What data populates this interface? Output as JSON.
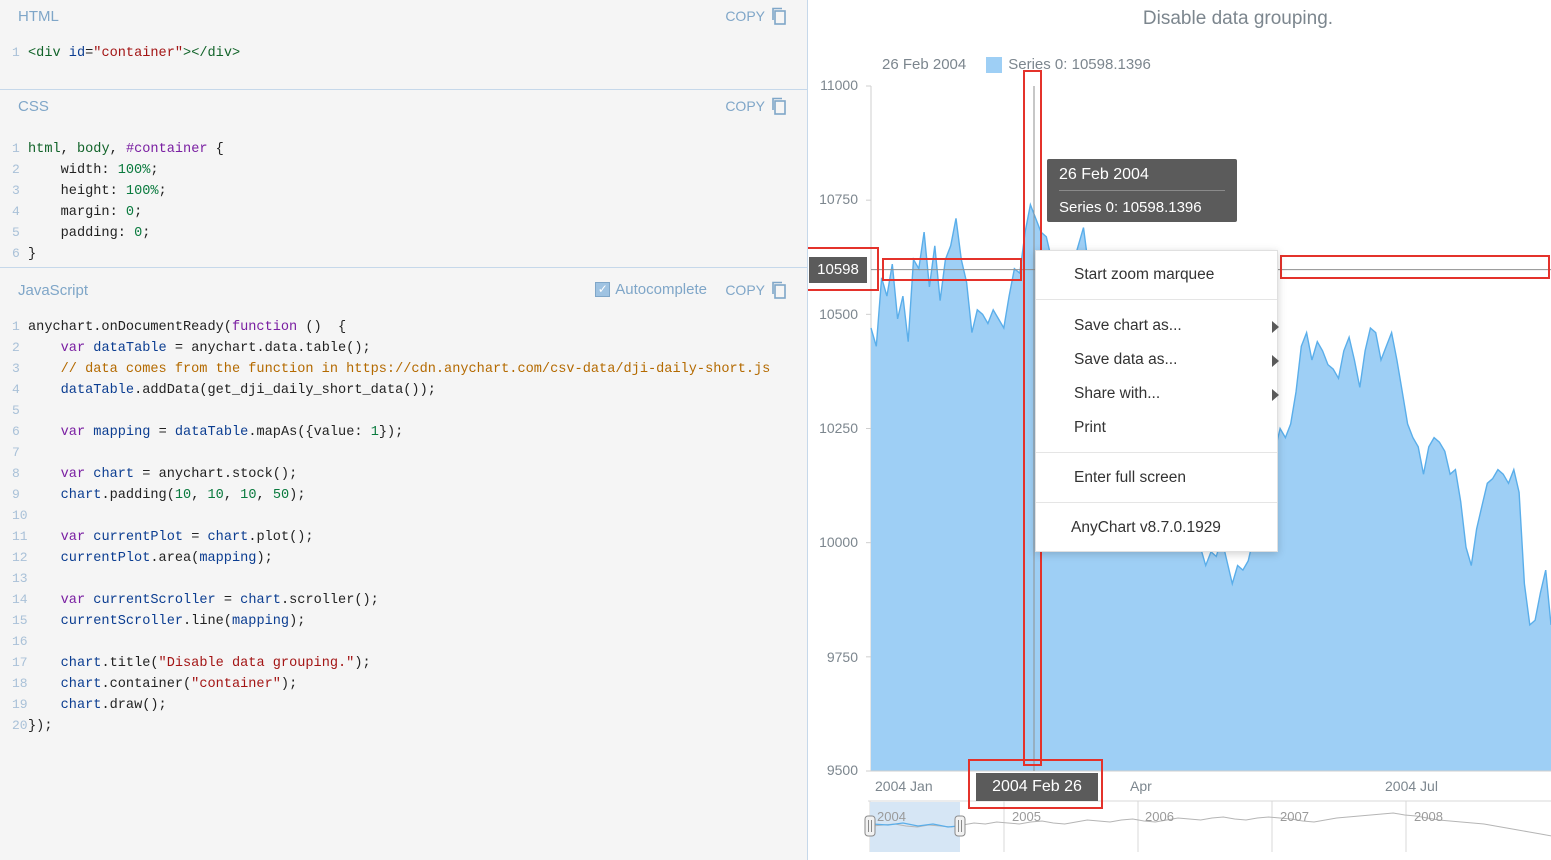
{
  "editor": {
    "html": {
      "title": "HTML",
      "copy_label": "COPY",
      "lines": [
        [
          [
            "tag",
            "<div "
          ],
          [
            "attr",
            "id"
          ],
          [
            "ct",
            "="
          ],
          [
            "str",
            "\"container\""
          ],
          [
            "tag",
            "></div>"
          ]
        ]
      ]
    },
    "css": {
      "title": "CSS",
      "copy_label": "COPY",
      "lines": [
        [
          [
            "tag",
            "html"
          ],
          [
            "ct",
            ", "
          ],
          [
            "tag",
            "body"
          ],
          [
            "ct",
            ", "
          ],
          [
            "kw",
            "#container"
          ],
          [
            "ct",
            " {"
          ]
        ],
        [
          [
            "ct",
            "    width: "
          ],
          [
            "num",
            "100%"
          ],
          [
            "ct",
            ";"
          ]
        ],
        [
          [
            "ct",
            "    height: "
          ],
          [
            "num",
            "100%"
          ],
          [
            "ct",
            ";"
          ]
        ],
        [
          [
            "ct",
            "    margin: "
          ],
          [
            "num",
            "0"
          ],
          [
            "ct",
            ";"
          ]
        ],
        [
          [
            "ct",
            "    padding: "
          ],
          [
            "num",
            "0"
          ],
          [
            "ct",
            ";"
          ]
        ],
        [
          [
            "ct",
            "}"
          ]
        ]
      ]
    },
    "js": {
      "title": "JavaScript",
      "autocomplete_label": "Autocomplete",
      "autocomplete_checked": true,
      "copy_label": "COPY",
      "lines": [
        [
          [
            "ct",
            "anychart.onDocumentReady("
          ],
          [
            "kw",
            "function"
          ],
          [
            "ct",
            " ()  {"
          ]
        ],
        [
          [
            "ct",
            "    "
          ],
          [
            "kw",
            "var"
          ],
          [
            "ct",
            " "
          ],
          [
            "vr",
            "dataTable"
          ],
          [
            "ct",
            " = anychart.data.table();"
          ]
        ],
        [
          [
            "cm",
            "    // data comes from the function in https://cdn.anychart.com/csv-data/dji-daily-short.js"
          ]
        ],
        [
          [
            "ct",
            "    "
          ],
          [
            "vr",
            "dataTable"
          ],
          [
            "ct",
            ".addData(get_dji_daily_short_data());"
          ]
        ],
        [
          [
            "ct",
            ""
          ]
        ],
        [
          [
            "ct",
            "    "
          ],
          [
            "kw",
            "var"
          ],
          [
            "ct",
            " "
          ],
          [
            "vr",
            "mapping"
          ],
          [
            "ct",
            " = "
          ],
          [
            "vr",
            "dataTable"
          ],
          [
            "ct",
            ".mapAs({value: "
          ],
          [
            "num",
            "1"
          ],
          [
            "ct",
            "});"
          ]
        ],
        [
          [
            "ct",
            ""
          ]
        ],
        [
          [
            "ct",
            "    "
          ],
          [
            "kw",
            "var"
          ],
          [
            "ct",
            " "
          ],
          [
            "vr",
            "chart"
          ],
          [
            "ct",
            " = anychart.stock();"
          ]
        ],
        [
          [
            "ct",
            "    "
          ],
          [
            "vr",
            "chart"
          ],
          [
            "ct",
            ".padding("
          ],
          [
            "num",
            "10"
          ],
          [
            "ct",
            ", "
          ],
          [
            "num",
            "10"
          ],
          [
            "ct",
            ", "
          ],
          [
            "num",
            "10"
          ],
          [
            "ct",
            ", "
          ],
          [
            "num",
            "50"
          ],
          [
            "ct",
            ");"
          ]
        ],
        [
          [
            "ct",
            ""
          ]
        ],
        [
          [
            "ct",
            "    "
          ],
          [
            "kw",
            "var"
          ],
          [
            "ct",
            " "
          ],
          [
            "vr",
            "currentPlot"
          ],
          [
            "ct",
            " = "
          ],
          [
            "vr",
            "chart"
          ],
          [
            "ct",
            ".plot();"
          ]
        ],
        [
          [
            "ct",
            "    "
          ],
          [
            "vr",
            "currentPlot"
          ],
          [
            "ct",
            ".area("
          ],
          [
            "vr",
            "mapping"
          ],
          [
            "ct",
            ");"
          ]
        ],
        [
          [
            "ct",
            ""
          ]
        ],
        [
          [
            "ct",
            "    "
          ],
          [
            "kw",
            "var"
          ],
          [
            "ct",
            " "
          ],
          [
            "vr",
            "currentScroller"
          ],
          [
            "ct",
            " = "
          ],
          [
            "vr",
            "chart"
          ],
          [
            "ct",
            ".scroller();"
          ]
        ],
        [
          [
            "ct",
            "    "
          ],
          [
            "vr",
            "currentScroller"
          ],
          [
            "ct",
            ".line("
          ],
          [
            "vr",
            "mapping"
          ],
          [
            "ct",
            ");"
          ]
        ],
        [
          [
            "ct",
            ""
          ]
        ],
        [
          [
            "ct",
            "    "
          ],
          [
            "vr",
            "chart"
          ],
          [
            "ct",
            ".title("
          ],
          [
            "str",
            "\"Disable data grouping.\""
          ],
          [
            "ct",
            ");"
          ]
        ],
        [
          [
            "ct",
            "    "
          ],
          [
            "vr",
            "chart"
          ],
          [
            "ct",
            ".container("
          ],
          [
            "str",
            "\"container\""
          ],
          [
            "ct",
            ");"
          ]
        ],
        [
          [
            "ct",
            "    "
          ],
          [
            "vr",
            "chart"
          ],
          [
            "ct",
            ".draw();"
          ]
        ],
        [
          [
            "ct",
            "});"
          ]
        ]
      ]
    }
  },
  "chart": {
    "title": "Disable data grouping.",
    "legend_date": "26 Feb 2004",
    "legend_series": "Series 0: 10598.1396",
    "series_color": "#9ecff5",
    "series_stroke": "#5aaeea",
    "tooltip": {
      "title": "26 Feb 2004",
      "value": "Series 0: 10598.1396"
    },
    "crosshair_y_label": "10598",
    "crosshair_x_label": "2004 Feb 26",
    "highlight_color": "#e4322b",
    "context_menu": {
      "start_zoom": "Start zoom marquee",
      "save_chart": "Save chart as...",
      "save_data": "Save data as...",
      "share": "Share with...",
      "print": "Print",
      "full_screen": "Enter full screen",
      "version": "AnyChart v8.7.0.1929"
    }
  },
  "chart_data": {
    "type": "area",
    "title": "Disable data grouping.",
    "series": [
      {
        "name": "Series 0"
      }
    ],
    "x_tick_labels": [
      "2004 Jan",
      "Apr",
      "2004 Jul"
    ],
    "y_tick_labels": [
      "11000",
      "10750",
      "10500",
      "10250",
      "10000",
      "9750",
      "9500"
    ],
    "ylim": [
      9500,
      11000
    ],
    "scroller_labels": [
      "2004",
      "2005",
      "2006",
      "2007",
      "2008"
    ],
    "values": [
      10470,
      10430,
      10580,
      10540,
      10610,
      10490,
      10540,
      10440,
      10620,
      10600,
      10680,
      10560,
      10650,
      10530,
      10620,
      10650,
      10710,
      10620,
      10570,
      10460,
      10510,
      10500,
      10480,
      10510,
      10490,
      10470,
      10540,
      10600,
      10590,
      10680,
      10740,
      10710,
      10680,
      10670,
      10620,
      10620,
      10560,
      10590,
      10610,
      10650,
      10690,
      10600,
      10570,
      10540,
      10470,
      10500,
      10440,
      10320,
      10350,
      10300,
      10370,
      10270,
      10230,
      10200,
      10180,
      10200,
      10150,
      10110,
      10060,
      10040,
      10040,
      10000,
      9990,
      9950,
      9980,
      9970,
      10010,
      9960,
      9910,
      9950,
      9940,
      9960,
      10010,
      10100,
      10120,
      10150,
      10200,
      10250,
      10230,
      10260,
      10330,
      10430,
      10460,
      10400,
      10440,
      10420,
      10390,
      10380,
      10360,
      10420,
      10450,
      10400,
      10340,
      10420,
      10470,
      10460,
      10400,
      10430,
      10460,
      10400,
      10330,
      10260,
      10230,
      10210,
      10150,
      10210,
      10230,
      10220,
      10200,
      10150,
      10160,
      10090,
      9990,
      9950,
      10030,
      10080,
      10130,
      10140,
      10160,
      10150,
      10130,
      10160,
      10110,
      9910,
      9820,
      9830,
      9890,
      9940,
      9820
    ]
  }
}
